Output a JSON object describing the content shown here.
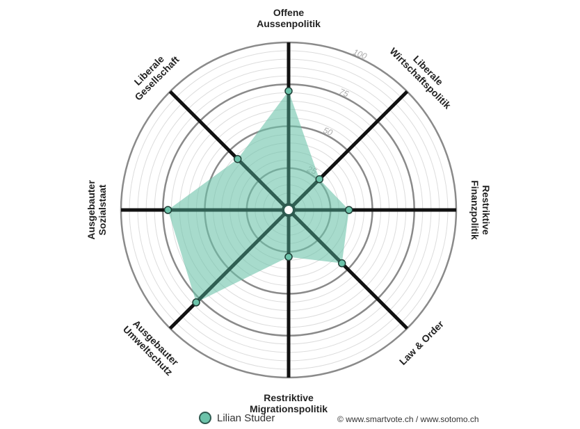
{
  "chart_data": {
    "type": "radar",
    "title": "",
    "axes": [
      {
        "label_lines": [
          "Offene",
          "Aussenpolitik"
        ],
        "value": 71
      },
      {
        "label_lines": [
          "Liberale",
          "Wirtschaftspolitik"
        ],
        "value": 26
      },
      {
        "label_lines": [
          "Restriktive",
          "Finanzpolitik"
        ],
        "value": 36
      },
      {
        "label_lines": [
          "Law & Order"
        ],
        "value": 45
      },
      {
        "label_lines": [
          "Restriktive",
          "Migrationspolitik"
        ],
        "value": 28
      },
      {
        "label_lines": [
          "Ausgebauter",
          "Umweltschutz"
        ],
        "value": 78
      },
      {
        "label_lines": [
          "Ausgebauter",
          "Sozialstaat"
        ],
        "value": 72
      },
      {
        "label_lines": [
          "Liberale",
          "Gesellschaft"
        ],
        "value": 43
      }
    ],
    "range": [
      0,
      100
    ],
    "ticks": [
      25,
      50,
      75,
      100
    ],
    "series": [
      {
        "name": "Lilian Studer",
        "color": "#6cc3aa"
      }
    ]
  },
  "legend": {
    "label": "Lilian Studer"
  },
  "credit": "© www.smartvote.ch / www.sotomo.ch"
}
